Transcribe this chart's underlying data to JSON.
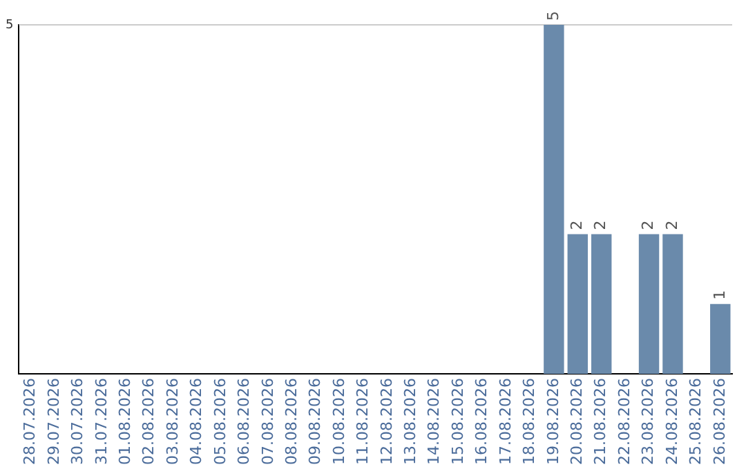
{
  "chart_data": {
    "type": "bar",
    "categories": [
      "28.07.2026",
      "29.07.2026",
      "30.07.2026",
      "31.07.2026",
      "01.08.2026",
      "02.08.2026",
      "03.08.2026",
      "04.08.2026",
      "05.08.2026",
      "06.08.2026",
      "07.08.2026",
      "08.08.2026",
      "09.08.2026",
      "10.08.2026",
      "11.08.2026",
      "12.08.2026",
      "13.08.2026",
      "14.08.2026",
      "15.08.2026",
      "16.08.2026",
      "17.08.2026",
      "18.08.2026",
      "19.08.2026",
      "20.08.2026",
      "21.08.2026",
      "22.08.2026",
      "23.08.2026",
      "24.08.2026",
      "25.08.2026",
      "26.08.2026"
    ],
    "values": [
      null,
      null,
      null,
      null,
      null,
      null,
      null,
      null,
      null,
      null,
      null,
      null,
      null,
      null,
      null,
      null,
      null,
      null,
      null,
      null,
      null,
      null,
      5,
      2,
      2,
      null,
      2,
      2,
      null,
      1
    ],
    "data_labels": true,
    "color": "#6a8aab",
    "ylim": [
      0,
      5
    ],
    "yticks": [
      5
    ],
    "ref_lines": [
      {
        "axis": "y",
        "value": 5,
        "color": "#cccccc"
      }
    ],
    "legend": false
  }
}
